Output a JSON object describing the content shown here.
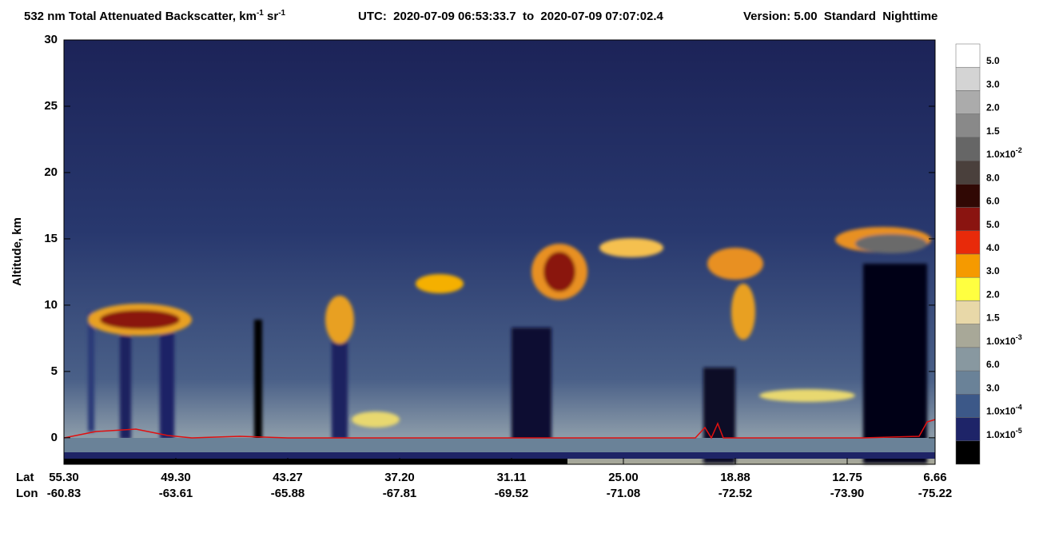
{
  "chart_data": {
    "type": "curtain",
    "title": [
      "532 nm Total Attenuated Backscatter, km",
      "-1",
      " sr",
      "-1"
    ],
    "time_range": "UTC:  2020-07-09 06:53:33.7  to  2020-07-09 07:07:02.4",
    "version": "Version: 5.00  Standard  Nighttime",
    "ylabel": "Altitude, km",
    "ylim": [
      -2,
      30
    ],
    "yticks": [
      0,
      5,
      10,
      15,
      20,
      25,
      30
    ],
    "x_row_labels": [
      "Lat",
      "Lon"
    ],
    "lat": [
      "55.30",
      "49.30",
      "43.27",
      "37.20",
      "31.11",
      "25.00",
      "18.88",
      "12.75",
      "6.66"
    ],
    "lon": [
      "-60.83",
      "-63.61",
      "-65.88",
      "-67.81",
      "-69.52",
      "-71.08",
      "-72.52",
      "-73.90",
      "-75.22"
    ],
    "colorbar": {
      "labels": [
        {
          "text": "5.0"
        },
        {
          "text": "3.0"
        },
        {
          "text": "2.0"
        },
        {
          "text": "1.5"
        },
        {
          "text": "1.0x10",
          "exp": "-2"
        },
        {
          "text": "8.0"
        },
        {
          "text": "6.0"
        },
        {
          "text": "5.0"
        },
        {
          "text": "4.0"
        },
        {
          "text": "3.0"
        },
        {
          "text": "2.0"
        },
        {
          "text": "1.5"
        },
        {
          "text": "1.0x10",
          "exp": "-3"
        },
        {
          "text": "6.0"
        },
        {
          "text": "3.0"
        },
        {
          "text": "1.0x10",
          "exp": "-4"
        },
        {
          "text": "1.0x10",
          "exp": "-5"
        }
      ],
      "colors": [
        "#ffffff",
        "#d4d4d4",
        "#ababab",
        "#898989",
        "#666666",
        "#4a403c",
        "#300804",
        "#8a1410",
        "#e82a0a",
        "#f59a00",
        "#ffff40",
        "#e8d8a8",
        "#a8a898",
        "#8898a0",
        "#6a8298",
        "#3c5888",
        "#1e2468",
        "#000000"
      ]
    }
  }
}
